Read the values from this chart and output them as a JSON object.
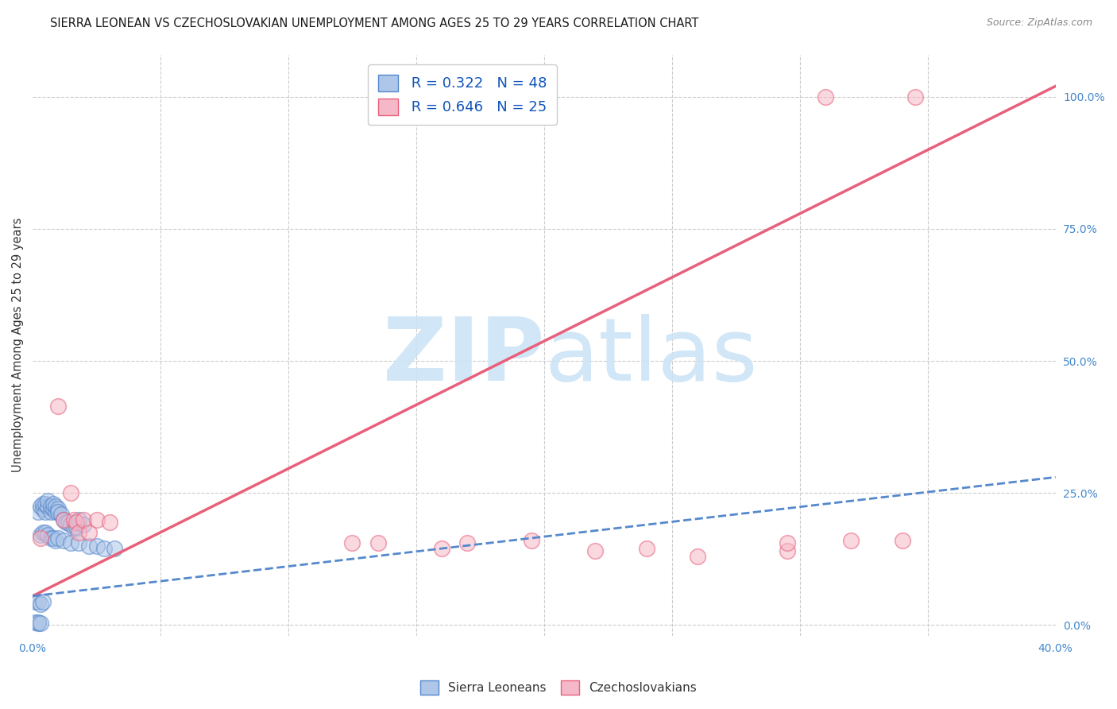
{
  "title": "SIERRA LEONEAN VS CZECHOSLOVAKIAN UNEMPLOYMENT AMONG AGES 25 TO 29 YEARS CORRELATION CHART",
  "source": "Source: ZipAtlas.com",
  "ylabel": "Unemployment Among Ages 25 to 29 years",
  "xlim": [
    0.0,
    0.4
  ],
  "ylim": [
    -0.02,
    1.08
  ],
  "x_ticks": [
    0.0,
    0.05,
    0.1,
    0.15,
    0.2,
    0.25,
    0.3,
    0.35,
    0.4
  ],
  "y_tick_labels_right": [
    "0.0%",
    "25.0%",
    "50.0%",
    "75.0%",
    "100.0%"
  ],
  "y_ticks_right": [
    0.0,
    0.25,
    0.5,
    0.75,
    1.0
  ],
  "legend_r1": "R = 0.322",
  "legend_n1": "N = 48",
  "legend_r2": "R = 0.646",
  "legend_n2": "N = 25",
  "color_sl": "#aec6e8",
  "color_cz": "#f5b8c8",
  "color_sl_line": "#5588cc",
  "color_cz_line": "#e8607a",
  "color_sl_edge": "#5588cc",
  "color_cz_edge": "#e8607a",
  "watermark_color": "#cce4f5",
  "sl_scatter_x": [
    0.002,
    0.003,
    0.004,
    0.004,
    0.005,
    0.005,
    0.006,
    0.006,
    0.007,
    0.007,
    0.008,
    0.008,
    0.009,
    0.009,
    0.01,
    0.01,
    0.011,
    0.012,
    0.013,
    0.014,
    0.015,
    0.016,
    0.017,
    0.018,
    0.02,
    0.003,
    0.004,
    0.005,
    0.006,
    0.007,
    0.008,
    0.009,
    0.01,
    0.012,
    0.015,
    0.018,
    0.022,
    0.025,
    0.028,
    0.032,
    0.001,
    0.002,
    0.003,
    0.004,
    0.001,
    0.002,
    0.002,
    0.003
  ],
  "sl_scatter_y": [
    0.215,
    0.225,
    0.22,
    0.23,
    0.215,
    0.23,
    0.225,
    0.235,
    0.215,
    0.225,
    0.22,
    0.23,
    0.215,
    0.225,
    0.22,
    0.215,
    0.21,
    0.2,
    0.195,
    0.195,
    0.19,
    0.185,
    0.185,
    0.2,
    0.19,
    0.17,
    0.175,
    0.175,
    0.17,
    0.165,
    0.165,
    0.16,
    0.165,
    0.16,
    0.155,
    0.155,
    0.15,
    0.15,
    0.145,
    0.145,
    0.045,
    0.045,
    0.04,
    0.045,
    0.005,
    0.003,
    0.005,
    0.003
  ],
  "cz_scatter_x": [
    0.003,
    0.01,
    0.012,
    0.015,
    0.016,
    0.017,
    0.018,
    0.02,
    0.022,
    0.025,
    0.03,
    0.125,
    0.135,
    0.16,
    0.17,
    0.195,
    0.22,
    0.24,
    0.26,
    0.295,
    0.32,
    0.34,
    0.345,
    0.31,
    0.295
  ],
  "cz_scatter_y": [
    0.165,
    0.415,
    0.2,
    0.25,
    0.2,
    0.195,
    0.175,
    0.2,
    0.175,
    0.2,
    0.195,
    0.155,
    0.155,
    0.145,
    0.155,
    0.16,
    0.14,
    0.145,
    0.13,
    0.14,
    0.16,
    0.16,
    1.0,
    1.0,
    0.155
  ],
  "sl_line_x": [
    0.0,
    0.4
  ],
  "sl_line_y": [
    0.055,
    0.28
  ],
  "cz_line_x": [
    0.0,
    0.4
  ],
  "cz_line_y": [
    0.055,
    1.02
  ],
  "background_color": "#ffffff",
  "grid_color": "#cccccc"
}
